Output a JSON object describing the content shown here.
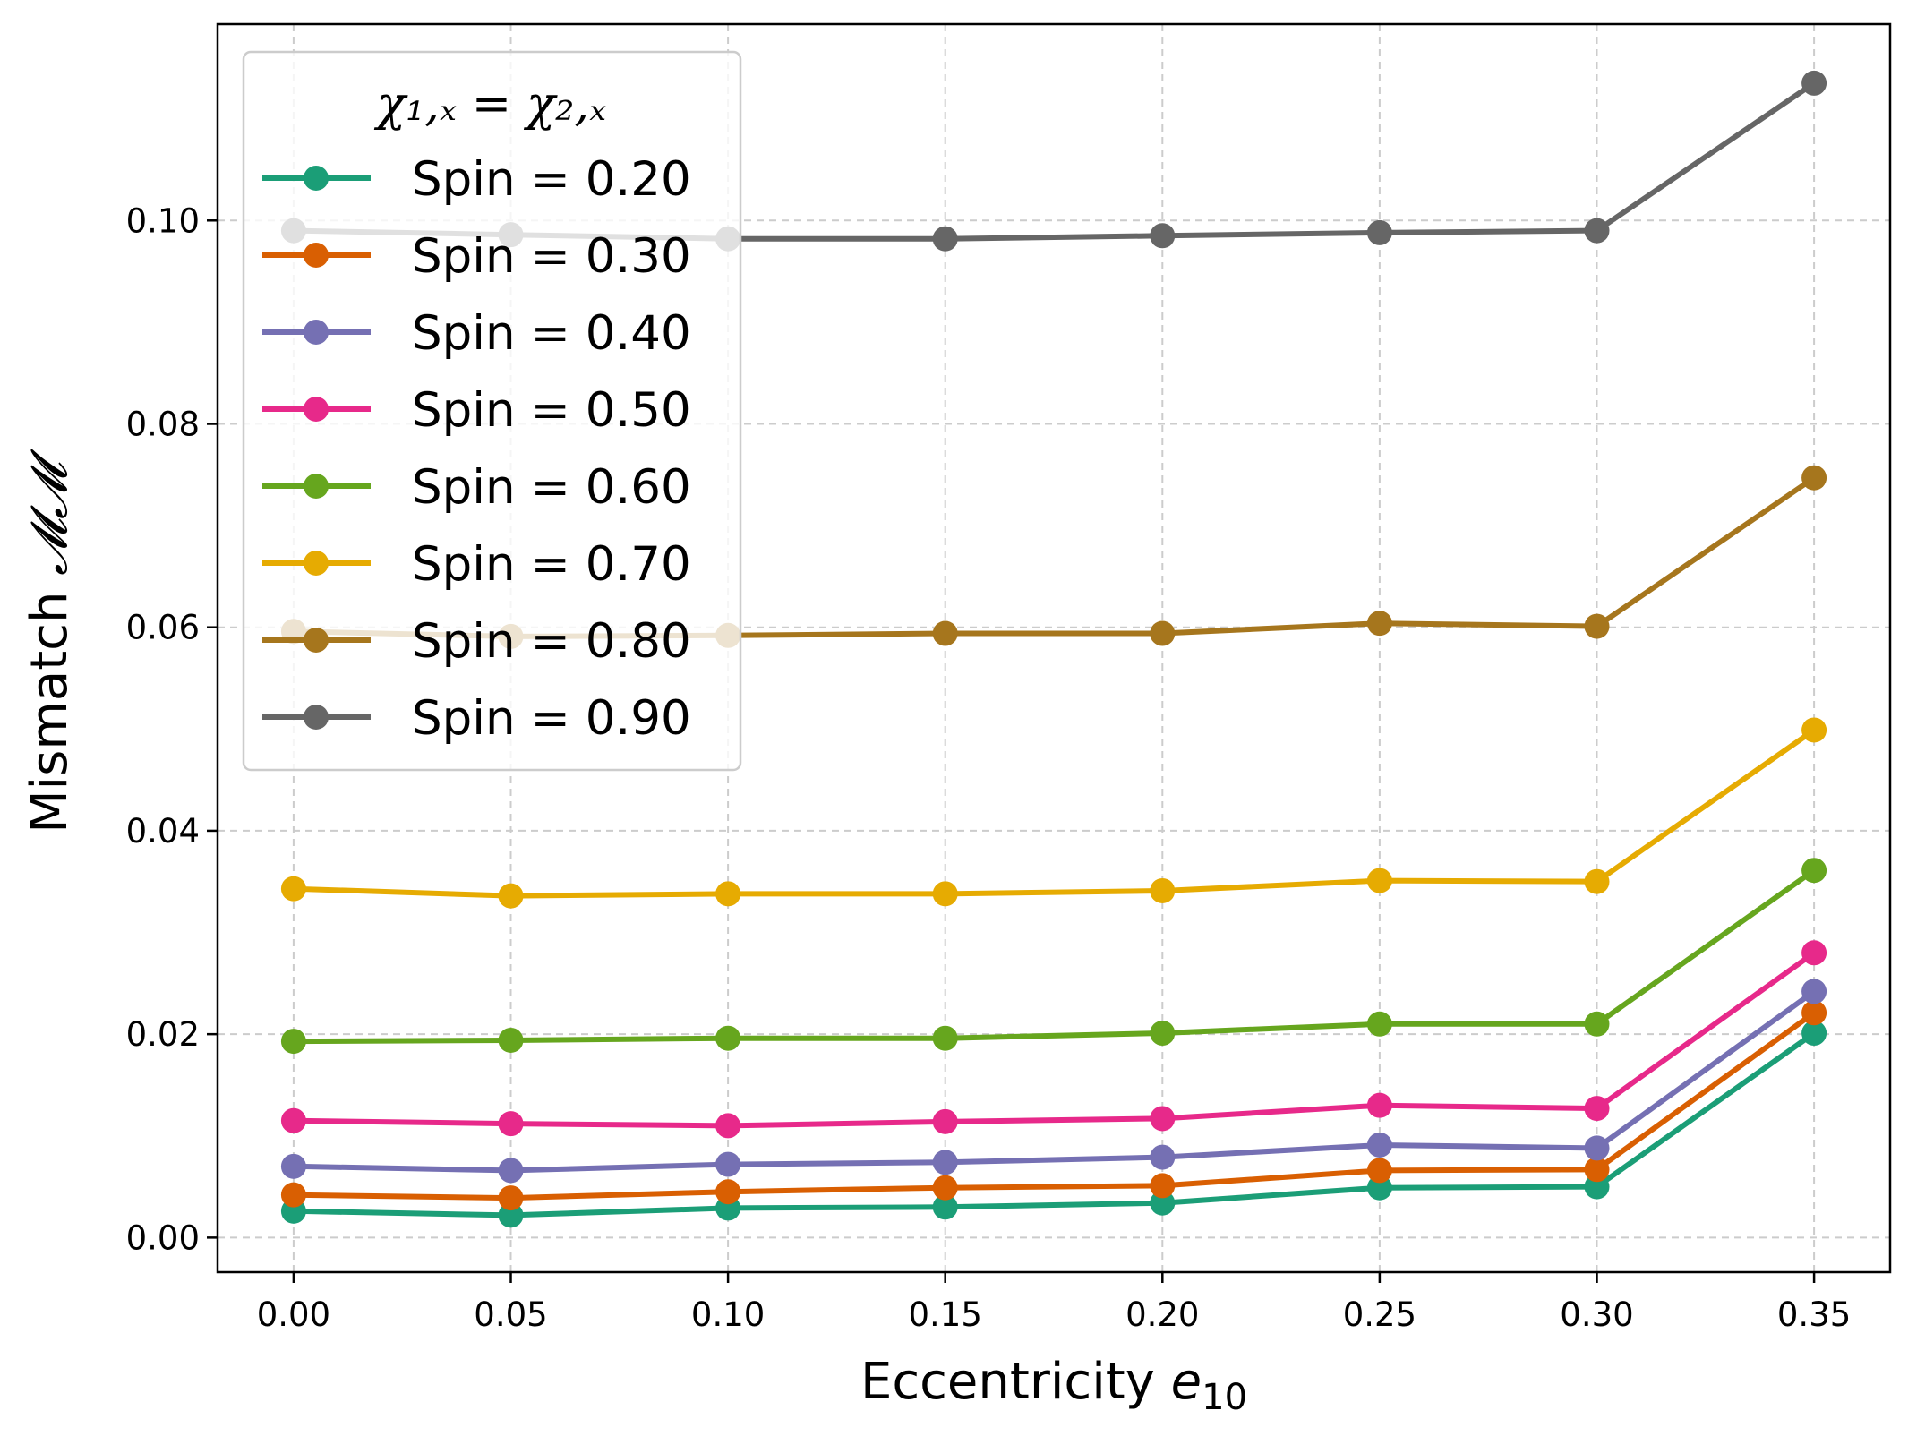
{
  "chart_data": {
    "type": "line",
    "x": [
      0.0,
      0.05,
      0.1,
      0.15,
      0.2,
      0.25,
      0.3,
      0.35
    ],
    "x_tick_labels": [
      "0.00",
      "0.05",
      "0.10",
      "0.15",
      "0.20",
      "0.25",
      "0.30",
      "0.35"
    ],
    "y_tick_values": [
      0.0,
      0.02,
      0.04,
      0.06,
      0.08,
      0.1
    ],
    "y_tick_labels": [
      "0.00",
      "0.02",
      "0.04",
      "0.06",
      "0.08",
      "0.10"
    ],
    "xlim": [
      -0.0175,
      0.3675
    ],
    "ylim": [
      -0.0034,
      0.1193
    ],
    "xlabel_main": "Eccentricity ",
    "xlabel_var": "e",
    "xlabel_sub": "10",
    "ylabel_main": "Mismatch ",
    "ylabel_symbol": "𝓜𝓜",
    "legend_title": "χ₁,ₓ = χ₂,ₓ",
    "legend_location": "upper-left",
    "grid": true,
    "series": [
      {
        "name": "Spin = 0.20",
        "color": "#1b9e77",
        "values": [
          0.0026,
          0.0022,
          0.0029,
          0.003,
          0.0034,
          0.0049,
          0.005,
          0.0201
        ]
      },
      {
        "name": "Spin = 0.30",
        "color": "#d95f02",
        "values": [
          0.0042,
          0.0039,
          0.0045,
          0.0049,
          0.0051,
          0.0066,
          0.0067,
          0.0221
        ]
      },
      {
        "name": "Spin = 0.40",
        "color": "#7570b3",
        "values": [
          0.007,
          0.0066,
          0.0072,
          0.0074,
          0.0079,
          0.0091,
          0.0088,
          0.0242
        ]
      },
      {
        "name": "Spin = 0.50",
        "color": "#e7298a",
        "values": [
          0.0115,
          0.0112,
          0.011,
          0.0114,
          0.0117,
          0.013,
          0.0127,
          0.028
        ]
      },
      {
        "name": "Spin = 0.60",
        "color": "#66a61e",
        "values": [
          0.0193,
          0.0194,
          0.0196,
          0.0196,
          0.0201,
          0.021,
          0.021,
          0.0361
        ]
      },
      {
        "name": "Spin = 0.70",
        "color": "#e6ab02",
        "values": [
          0.0343,
          0.0336,
          0.0338,
          0.0338,
          0.0341,
          0.0351,
          0.035,
          0.0499
        ]
      },
      {
        "name": "Spin = 0.80",
        "color": "#a6761d",
        "values": [
          0.0596,
          0.0591,
          0.0592,
          0.0594,
          0.0594,
          0.0604,
          0.0601,
          0.0747
        ]
      },
      {
        "name": "Spin = 0.90",
        "color": "#666666",
        "values": [
          0.099,
          0.0986,
          0.0982,
          0.0982,
          0.0985,
          0.0988,
          0.099,
          0.1135
        ]
      }
    ]
  }
}
